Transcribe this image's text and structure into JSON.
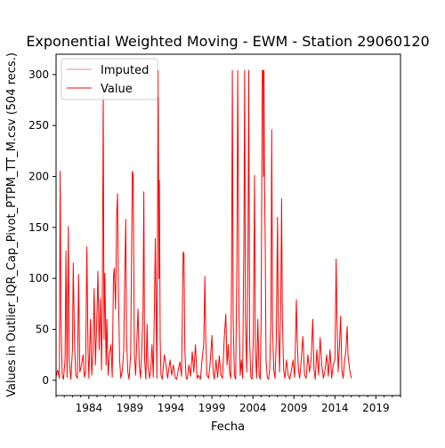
{
  "chart_data": {
    "type": "line",
    "title": "Exponential Weighted Moving - EWM - Station 29060120",
    "xlabel": "Fecha",
    "ylabel": "Values in Outlier_IQR_Cap_Pivot_PTPM_TT_M.csv (504 recs.)",
    "xlim": [
      1980.0,
      2022.0
    ],
    "ylim": [
      -15,
      320
    ],
    "x_ticks": [
      1984,
      1989,
      1994,
      1999,
      2004,
      2009,
      2014,
      2019
    ],
    "y_ticks": [
      0,
      50,
      100,
      150,
      200,
      250,
      300
    ],
    "legend": {
      "position": "upper-left"
    },
    "grid": false,
    "series": [
      {
        "name": "Imputed",
        "color": "#ff0000",
        "line_width": 0.6,
        "points": []
      },
      {
        "name": "Value",
        "color": "#ff0000",
        "line_width": 1.0,
        "points": [
          [
            1980.0,
            3
          ],
          [
            1980.2,
            10
          ],
          [
            1980.4,
            2
          ],
          [
            1980.5,
            205
          ],
          [
            1980.6,
            60
          ],
          [
            1980.75,
            5
          ],
          [
            1980.9,
            1
          ],
          [
            1981.1,
            20
          ],
          [
            1981.2,
            127
          ],
          [
            1981.35,
            3
          ],
          [
            1981.5,
            151
          ],
          [
            1981.6,
            20
          ],
          [
            1981.8,
            1
          ],
          [
            1982.0,
            30
          ],
          [
            1982.1,
            115
          ],
          [
            1982.25,
            40
          ],
          [
            1982.4,
            5
          ],
          [
            1982.6,
            2
          ],
          [
            1982.75,
            104
          ],
          [
            1982.9,
            8
          ],
          [
            1983.1,
            15
          ],
          [
            1983.3,
            25
          ],
          [
            1983.45,
            3
          ],
          [
            1983.6,
            8
          ],
          [
            1983.75,
            131
          ],
          [
            1983.9,
            30
          ],
          [
            1984.0,
            2
          ],
          [
            1984.2,
            60
          ],
          [
            1984.35,
            5
          ],
          [
            1984.5,
            28
          ],
          [
            1984.65,
            90
          ],
          [
            1984.8,
            15
          ],
          [
            1985.0,
            70
          ],
          [
            1985.1,
            107
          ],
          [
            1985.25,
            30
          ],
          [
            1985.4,
            80
          ],
          [
            1985.55,
            10
          ],
          [
            1985.65,
            97
          ],
          [
            1985.75,
            283
          ],
          [
            1985.85,
            40
          ],
          [
            1985.95,
            105
          ],
          [
            1986.1,
            15
          ],
          [
            1986.2,
            60
          ],
          [
            1986.35,
            5
          ],
          [
            1986.5,
            25
          ],
          [
            1986.7,
            35
          ],
          [
            1986.85,
            3
          ],
          [
            1987.0,
            102
          ],
          [
            1987.1,
            110
          ],
          [
            1987.25,
            70
          ],
          [
            1987.4,
            165
          ],
          [
            1987.5,
            183
          ],
          [
            1987.6,
            90
          ],
          [
            1987.75,
            20
          ],
          [
            1987.9,
            2
          ],
          [
            1988.1,
            10
          ],
          [
            1988.25,
            30
          ],
          [
            1988.4,
            115
          ],
          [
            1988.5,
            158
          ],
          [
            1988.6,
            40
          ],
          [
            1988.75,
            8
          ],
          [
            1988.9,
            1
          ],
          [
            1989.1,
            25
          ],
          [
            1989.3,
            205
          ],
          [
            1989.4,
            202
          ],
          [
            1989.55,
            25
          ],
          [
            1989.7,
            5
          ],
          [
            1989.9,
            50
          ],
          [
            1990.0,
            70
          ],
          [
            1990.15,
            15
          ],
          [
            1990.3,
            2
          ],
          [
            1990.45,
            30
          ],
          [
            1990.6,
            68
          ],
          [
            1990.7,
            185
          ],
          [
            1990.8,
            20
          ],
          [
            1990.95,
            1
          ],
          [
            1991.1,
            55
          ],
          [
            1991.2,
            15
          ],
          [
            1991.4,
            2
          ],
          [
            1991.55,
            10
          ],
          [
            1991.7,
            35
          ],
          [
            1991.85,
            3
          ],
          [
            1992.0,
            75
          ],
          [
            1992.1,
            139
          ],
          [
            1992.2,
            70
          ],
          [
            1992.3,
            2
          ],
          [
            1992.45,
            304
          ],
          [
            1992.55,
            100
          ],
          [
            1992.6,
            196
          ],
          [
            1992.7,
            40
          ],
          [
            1992.8,
            5
          ],
          [
            1992.95,
            1
          ],
          [
            1993.2,
            25
          ],
          [
            1993.4,
            15
          ],
          [
            1993.6,
            2
          ],
          [
            1993.9,
            20
          ],
          [
            1994.1,
            5
          ],
          [
            1994.3,
            15
          ],
          [
            1994.5,
            3
          ],
          [
            1994.7,
            1
          ],
          [
            1994.9,
            10
          ],
          [
            1995.1,
            18
          ],
          [
            1995.3,
            4
          ],
          [
            1995.5,
            126
          ],
          [
            1995.6,
            124
          ],
          [
            1995.7,
            30
          ],
          [
            1995.85,
            3
          ],
          [
            1996.0,
            1
          ],
          [
            1996.2,
            15
          ],
          [
            1996.4,
            4
          ],
          [
            1996.6,
            28
          ],
          [
            1996.8,
            8
          ],
          [
            1997.0,
            35
          ],
          [
            1997.2,
            2
          ],
          [
            1997.4,
            5
          ],
          [
            1997.6,
            1
          ],
          [
            1997.8,
            20
          ],
          [
            1998.0,
            35
          ],
          [
            1998.15,
            102
          ],
          [
            1998.25,
            40
          ],
          [
            1998.4,
            5
          ],
          [
            1998.6,
            2
          ],
          [
            1998.8,
            18
          ],
          [
            1999.0,
            44
          ],
          [
            1999.15,
            8
          ],
          [
            1999.3,
            1
          ],
          [
            1999.5,
            20
          ],
          [
            1999.7,
            3
          ],
          [
            1999.9,
            24
          ],
          [
            2000.1,
            5
          ],
          [
            2000.3,
            2
          ],
          [
            2000.5,
            40
          ],
          [
            2000.7,
            65
          ],
          [
            2000.85,
            15
          ],
          [
            2001.0,
            35
          ],
          [
            2001.15,
            8
          ],
          [
            2001.3,
            2
          ],
          [
            2001.4,
            110
          ],
          [
            2001.5,
            304
          ],
          [
            2001.6,
            60
          ],
          [
            2001.75,
            5
          ],
          [
            2001.9,
            1
          ],
          [
            2002.05,
            120
          ],
          [
            2002.15,
            304
          ],
          [
            2002.3,
            70
          ],
          [
            2002.45,
            5
          ],
          [
            2002.6,
            20
          ],
          [
            2002.75,
            2
          ],
          [
            2002.9,
            134
          ],
          [
            2003.0,
            304
          ],
          [
            2003.1,
            60
          ],
          [
            2003.25,
            8
          ],
          [
            2003.4,
            120
          ],
          [
            2003.5,
            304
          ],
          [
            2003.6,
            40
          ],
          [
            2003.75,
            3
          ],
          [
            2003.9,
            1
          ],
          [
            2004.05,
            40
          ],
          [
            2004.2,
            201
          ],
          [
            2004.3,
            30
          ],
          [
            2004.45,
            2
          ],
          [
            2004.6,
            60
          ],
          [
            2004.75,
            5
          ],
          [
            2004.9,
            1
          ],
          [
            2005.0,
            60
          ],
          [
            2005.15,
            304
          ],
          [
            2005.2,
            290
          ],
          [
            2005.25,
            304
          ],
          [
            2005.3,
            200
          ],
          [
            2005.35,
            304
          ],
          [
            2005.4,
            213
          ],
          [
            2005.5,
            135
          ],
          [
            2005.6,
            20
          ],
          [
            2005.75,
            3
          ],
          [
            2005.9,
            1
          ],
          [
            2006.05,
            10
          ],
          [
            2006.2,
            60
          ],
          [
            2006.3,
            246
          ],
          [
            2006.4,
            50
          ],
          [
            2006.55,
            10
          ],
          [
            2006.7,
            2
          ],
          [
            2006.85,
            40
          ],
          [
            2007.0,
            160
          ],
          [
            2007.1,
            60
          ],
          [
            2007.25,
            8
          ],
          [
            2007.4,
            80
          ],
          [
            2007.5,
            178
          ],
          [
            2007.6,
            60
          ],
          [
            2007.75,
            10
          ],
          [
            2007.9,
            2
          ],
          [
            2008.1,
            20
          ],
          [
            2008.3,
            5
          ],
          [
            2008.5,
            1
          ],
          [
            2008.7,
            10
          ],
          [
            2008.9,
            20
          ],
          [
            2009.1,
            3
          ],
          [
            2009.3,
            79
          ],
          [
            2009.4,
            40
          ],
          [
            2009.55,
            10
          ],
          [
            2009.7,
            2
          ],
          [
            2009.9,
            20
          ],
          [
            2010.1,
            43
          ],
          [
            2010.3,
            5
          ],
          [
            2010.5,
            2
          ],
          [
            2010.7,
            25
          ],
          [
            2010.9,
            8
          ],
          [
            2011.1,
            20
          ],
          [
            2011.3,
            60
          ],
          [
            2011.45,
            10
          ],
          [
            2011.6,
            1
          ],
          [
            2011.8,
            30
          ],
          [
            2012.0,
            5
          ],
          [
            2012.2,
            42
          ],
          [
            2012.4,
            15
          ],
          [
            2012.6,
            2
          ],
          [
            2012.8,
            10
          ],
          [
            2013.0,
            25
          ],
          [
            2013.2,
            4
          ],
          [
            2013.4,
            30
          ],
          [
            2013.6,
            2
          ],
          [
            2013.8,
            15
          ],
          [
            2014.0,
            20
          ],
          [
            2014.15,
            119
          ],
          [
            2014.25,
            60
          ],
          [
            2014.4,
            8
          ],
          [
            2014.6,
            42
          ],
          [
            2014.7,
            63
          ],
          [
            2014.85,
            10
          ],
          [
            2015.0,
            2
          ],
          [
            2015.2,
            20
          ],
          [
            2015.35,
            30
          ],
          [
            2015.5,
            53
          ],
          [
            2015.6,
            25
          ],
          [
            2015.8,
            10
          ],
          [
            2016.0,
            2
          ]
        ]
      }
    ]
  }
}
